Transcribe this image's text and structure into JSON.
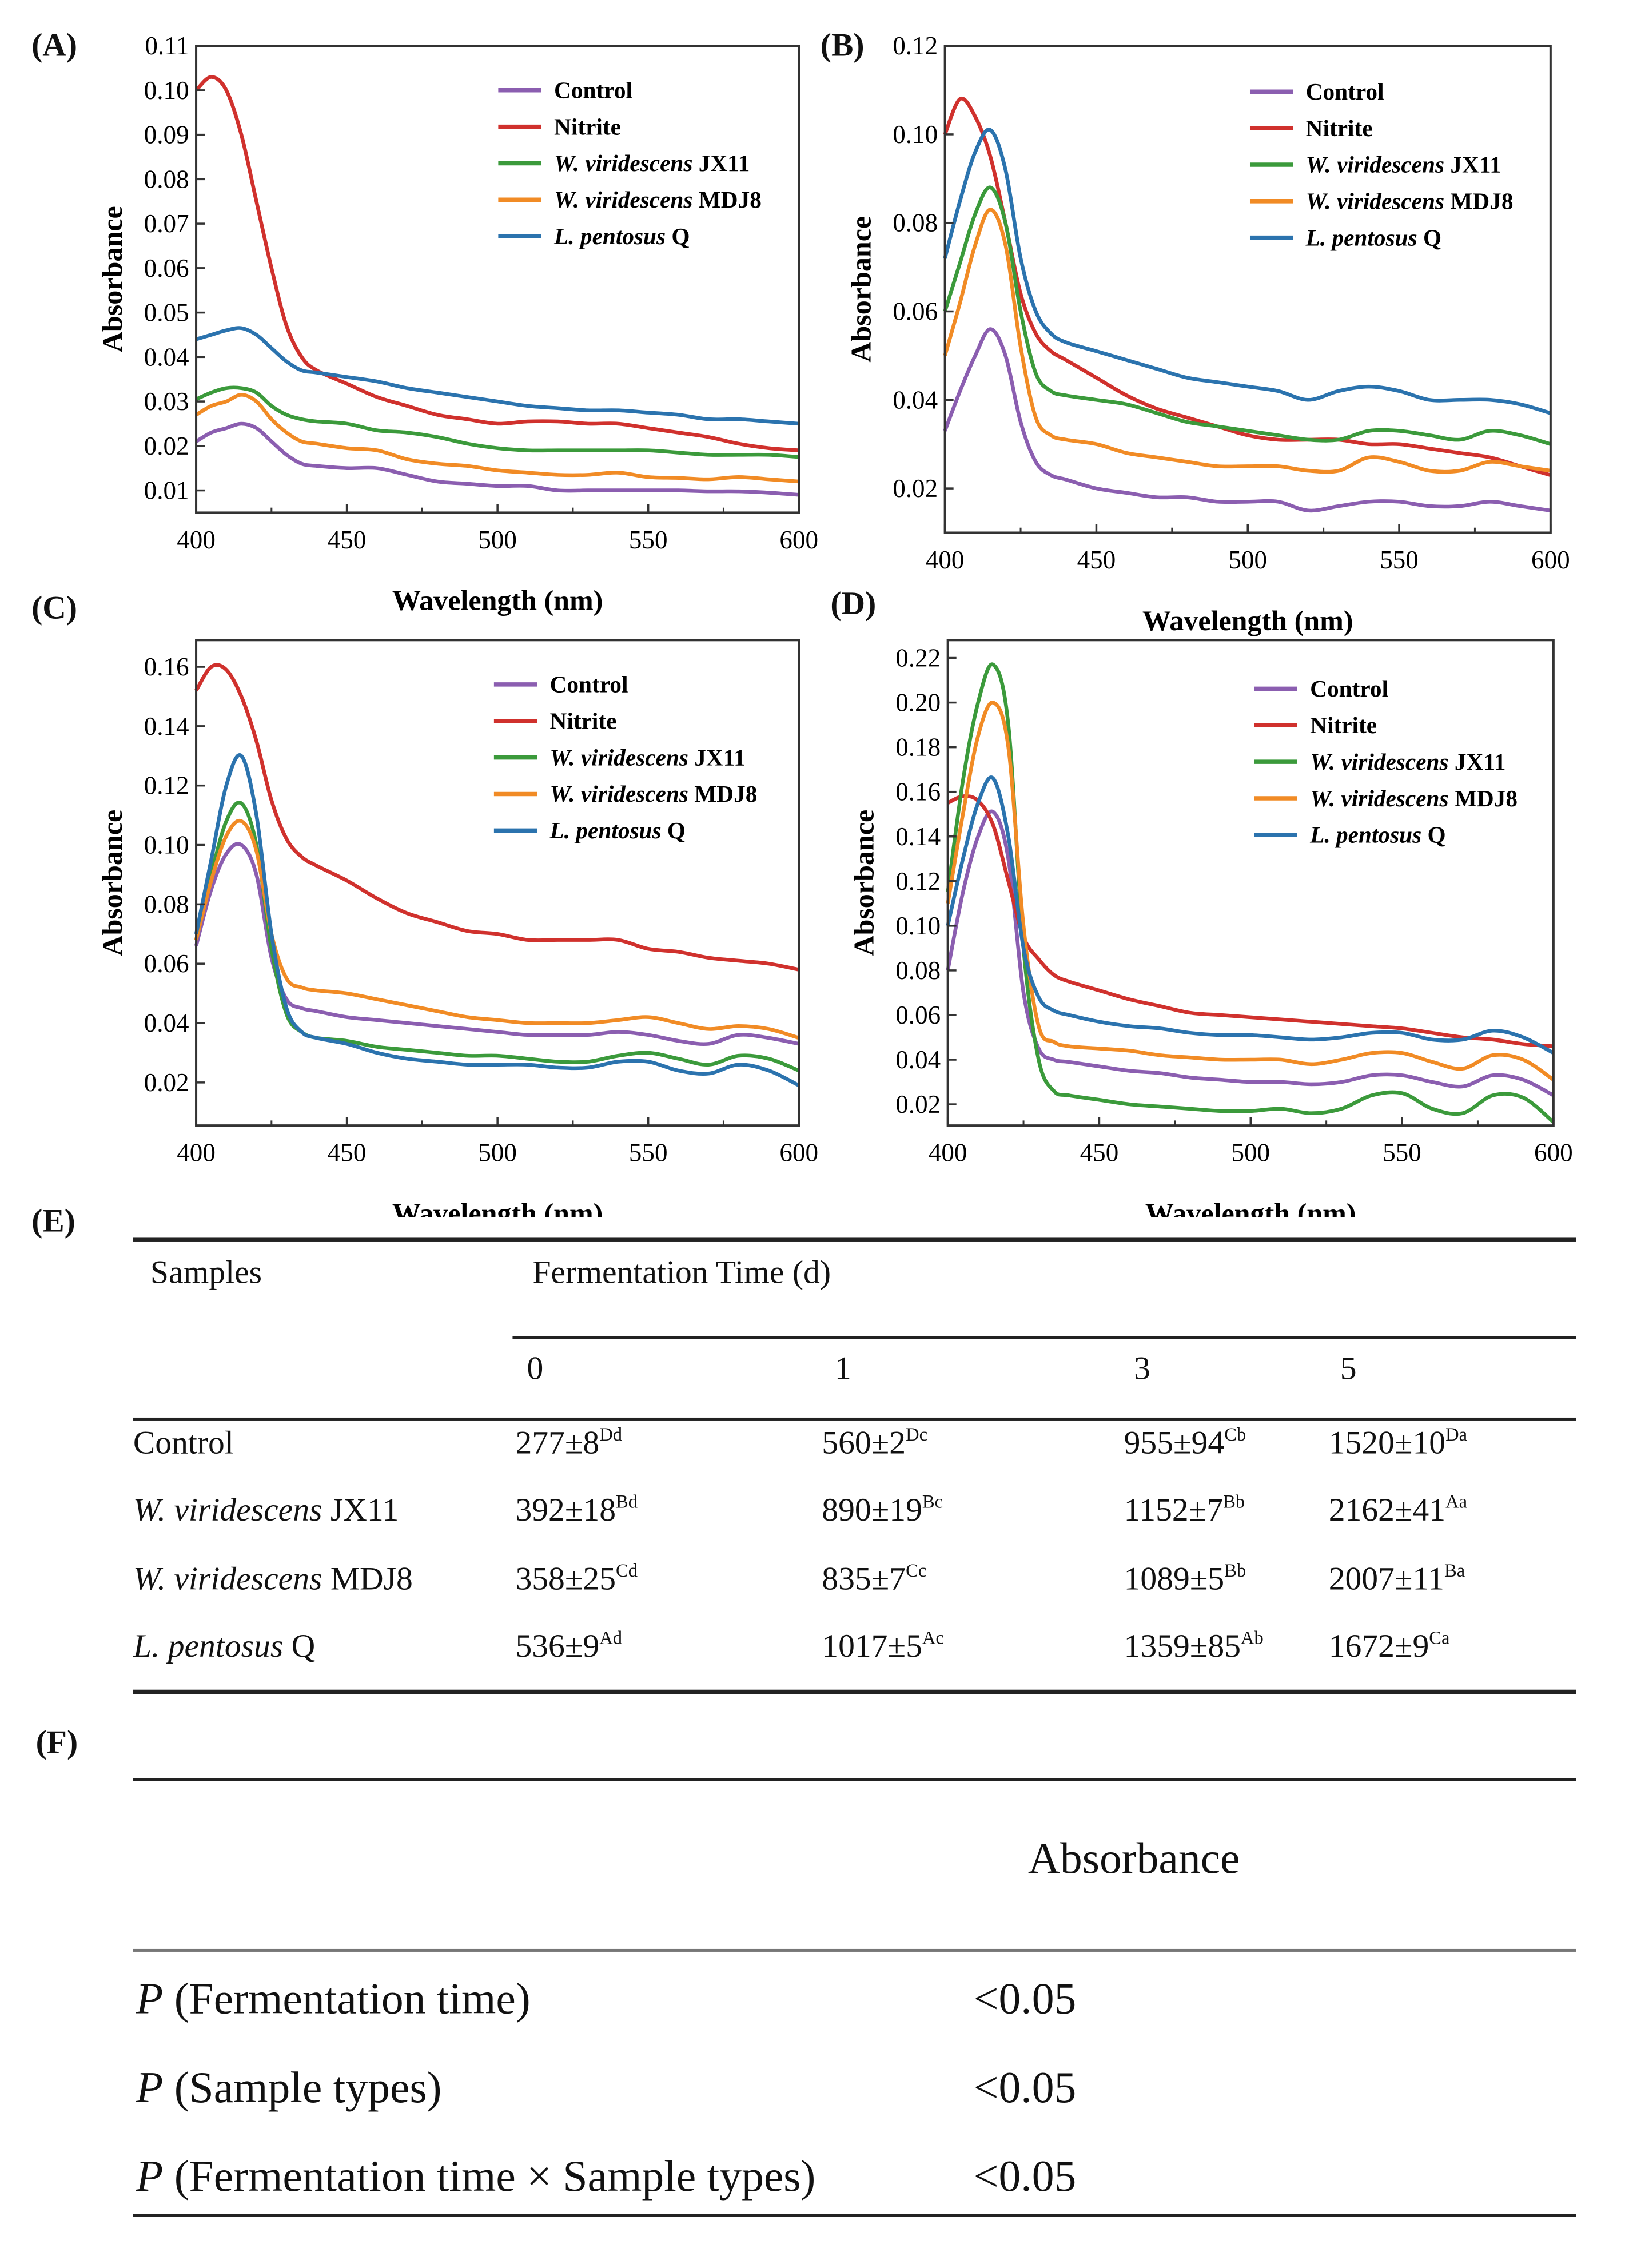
{
  "panels": {
    "A": "(A)",
    "B": "(B)",
    "C": "(C)",
    "D": "(D)",
    "E": "(E)",
    "F": "(F)"
  },
  "colors": {
    "Control": "#8b5eb0",
    "Nitrite": "#d0312d",
    "JX11": "#3b9a3b",
    "MDJ8": "#f18b25",
    "Q": "#2b73ae"
  },
  "chart_data": [
    {
      "type": "line",
      "panel": "A",
      "xlabel": "Wavelength (nm)",
      "ylabel": "Absorbance",
      "xlim": [
        400,
        600
      ],
      "ylim": [
        0.005,
        0.11
      ],
      "xtick_labels": [
        "400",
        "450",
        "500",
        "550",
        "600"
      ],
      "ytick_labels": [
        "0.01",
        "0.02",
        "0.03",
        "0.04",
        "0.05",
        "0.06",
        "0.07",
        "0.08",
        "0.09",
        "0.10",
        "0.11"
      ],
      "legend": "top-right",
      "x": [
        400,
        405,
        410,
        415,
        420,
        425,
        430,
        435,
        440,
        450,
        460,
        470,
        480,
        490,
        500,
        510,
        520,
        530,
        540,
        550,
        560,
        570,
        580,
        590,
        600
      ],
      "series": [
        {
          "key": "Control",
          "name_italic": "",
          "name_plain": "Control",
          "values": [
            0.021,
            0.023,
            0.024,
            0.025,
            0.024,
            0.021,
            0.018,
            0.016,
            0.0155,
            0.015,
            0.015,
            0.0135,
            0.012,
            0.0115,
            0.011,
            0.011,
            0.01,
            0.01,
            0.01,
            0.01,
            0.01,
            0.0098,
            0.0098,
            0.0095,
            0.009
          ]
        },
        {
          "key": "Nitrite",
          "name_italic": "",
          "name_plain": "Nitrite",
          "values": [
            0.1,
            0.103,
            0.1,
            0.09,
            0.075,
            0.06,
            0.047,
            0.04,
            0.037,
            0.034,
            0.031,
            0.029,
            0.027,
            0.026,
            0.025,
            0.0255,
            0.0255,
            0.025,
            0.025,
            0.024,
            0.023,
            0.022,
            0.0205,
            0.0195,
            0.019
          ]
        },
        {
          "key": "JX11",
          "name_italic": "W. viridescens",
          "name_plain": " JX11",
          "values": [
            0.0305,
            0.032,
            0.033,
            0.033,
            0.032,
            0.029,
            0.027,
            0.026,
            0.0255,
            0.025,
            0.0235,
            0.023,
            0.022,
            0.0205,
            0.0195,
            0.019,
            0.019,
            0.019,
            0.019,
            0.019,
            0.0185,
            0.018,
            0.018,
            0.018,
            0.0175
          ]
        },
        {
          "key": "MDJ8",
          "name_italic": "W. viridescens",
          "name_plain": " MDJ8",
          "values": [
            0.027,
            0.029,
            0.03,
            0.0315,
            0.03,
            0.026,
            0.023,
            0.021,
            0.0205,
            0.0195,
            0.019,
            0.017,
            0.016,
            0.0155,
            0.0145,
            0.014,
            0.0135,
            0.0135,
            0.014,
            0.013,
            0.0128,
            0.0125,
            0.013,
            0.0125,
            0.012
          ]
        },
        {
          "key": "Q",
          "name_italic": "L. pentosus",
          "name_plain": " Q",
          "values": [
            0.044,
            0.045,
            0.046,
            0.0465,
            0.045,
            0.042,
            0.039,
            0.037,
            0.0365,
            0.0355,
            0.0345,
            0.033,
            0.032,
            0.031,
            0.03,
            0.029,
            0.0285,
            0.028,
            0.028,
            0.0275,
            0.027,
            0.026,
            0.026,
            0.0255,
            0.025
          ]
        }
      ]
    },
    {
      "type": "line",
      "panel": "B",
      "xlabel": "Wavelength (nm)",
      "ylabel": "Absorbance",
      "xlim": [
        400,
        600
      ],
      "ylim": [
        0.01,
        0.12
      ],
      "xtick_labels": [
        "400",
        "450",
        "500",
        "550",
        "600"
      ],
      "ytick_labels": [
        "0.02",
        "0.04",
        "0.06",
        "0.08",
        "0.10",
        "0.12"
      ],
      "legend": "top-right",
      "x": [
        400,
        405,
        410,
        415,
        420,
        425,
        430,
        435,
        440,
        450,
        460,
        470,
        480,
        490,
        500,
        510,
        520,
        530,
        540,
        550,
        560,
        570,
        580,
        590,
        600
      ],
      "series": [
        {
          "key": "Control",
          "name_italic": "",
          "name_plain": "Control",
          "values": [
            0.033,
            0.042,
            0.05,
            0.056,
            0.05,
            0.035,
            0.026,
            0.023,
            0.022,
            0.02,
            0.019,
            0.018,
            0.018,
            0.017,
            0.017,
            0.017,
            0.015,
            0.016,
            0.017,
            0.017,
            0.016,
            0.016,
            0.017,
            0.016,
            0.015
          ]
        },
        {
          "key": "Nitrite",
          "name_italic": "",
          "name_plain": "Nitrite",
          "values": [
            0.1,
            0.108,
            0.104,
            0.095,
            0.08,
            0.064,
            0.055,
            0.051,
            0.049,
            0.045,
            0.041,
            0.038,
            0.036,
            0.034,
            0.032,
            0.031,
            0.031,
            0.031,
            0.03,
            0.03,
            0.029,
            0.028,
            0.027,
            0.025,
            0.023
          ]
        },
        {
          "key": "JX11",
          "name_italic": "W. viridescens",
          "name_plain": " JX11",
          "values": [
            0.06,
            0.071,
            0.082,
            0.088,
            0.08,
            0.06,
            0.046,
            0.042,
            0.041,
            0.04,
            0.039,
            0.037,
            0.035,
            0.034,
            0.033,
            0.032,
            0.031,
            0.031,
            0.033,
            0.033,
            0.032,
            0.031,
            0.033,
            0.032,
            0.03
          ]
        },
        {
          "key": "MDJ8",
          "name_italic": "W. viridescens",
          "name_plain": " MDJ8",
          "values": [
            0.05,
            0.062,
            0.075,
            0.083,
            0.075,
            0.052,
            0.036,
            0.032,
            0.031,
            0.03,
            0.028,
            0.027,
            0.026,
            0.025,
            0.025,
            0.025,
            0.024,
            0.024,
            0.027,
            0.026,
            0.024,
            0.024,
            0.026,
            0.025,
            0.024
          ]
        },
        {
          "key": "Q",
          "name_italic": "L. pentosus",
          "name_plain": " Q",
          "values": [
            0.072,
            0.085,
            0.096,
            0.101,
            0.092,
            0.072,
            0.06,
            0.055,
            0.053,
            0.051,
            0.049,
            0.047,
            0.045,
            0.044,
            0.043,
            0.042,
            0.04,
            0.042,
            0.043,
            0.042,
            0.04,
            0.04,
            0.04,
            0.039,
            0.037
          ]
        }
      ]
    },
    {
      "type": "line",
      "panel": "C",
      "xlabel": "Wavelength (nm)",
      "ylabel": "Absorbance",
      "xlim": [
        400,
        600
      ],
      "ylim": [
        0.0055,
        0.169
      ],
      "xtick_labels": [
        "400",
        "450",
        "500",
        "550",
        "600"
      ],
      "ytick_labels": [
        "0.02",
        "0.04",
        "0.06",
        "0.08",
        "0.10",
        "0.12",
        "0.14",
        "0.16"
      ],
      "legend": "top-right",
      "x": [
        400,
        405,
        410,
        415,
        420,
        425,
        430,
        435,
        440,
        450,
        460,
        470,
        480,
        490,
        500,
        510,
        520,
        530,
        540,
        550,
        560,
        570,
        580,
        590,
        600
      ],
      "series": [
        {
          "key": "Control",
          "name_italic": "",
          "name_plain": "Control",
          "values": [
            0.066,
            0.085,
            0.097,
            0.1,
            0.09,
            0.062,
            0.048,
            0.045,
            0.044,
            0.042,
            0.041,
            0.04,
            0.039,
            0.038,
            0.037,
            0.036,
            0.036,
            0.036,
            0.037,
            0.036,
            0.034,
            0.033,
            0.036,
            0.035,
            0.033
          ]
        },
        {
          "key": "Nitrite",
          "name_italic": "",
          "name_plain": "Nitrite",
          "values": [
            0.152,
            0.16,
            0.159,
            0.15,
            0.135,
            0.115,
            0.102,
            0.096,
            0.093,
            0.088,
            0.082,
            0.077,
            0.074,
            0.071,
            0.07,
            0.068,
            0.068,
            0.068,
            0.068,
            0.065,
            0.064,
            0.062,
            0.061,
            0.06,
            0.058
          ]
        },
        {
          "key": "JX11",
          "name_italic": "W. viridescens",
          "name_plain": " JX11",
          "values": [
            0.068,
            0.09,
            0.108,
            0.114,
            0.1,
            0.065,
            0.043,
            0.037,
            0.035,
            0.034,
            0.032,
            0.031,
            0.03,
            0.029,
            0.029,
            0.028,
            0.027,
            0.027,
            0.029,
            0.03,
            0.028,
            0.026,
            0.029,
            0.028,
            0.024
          ]
        },
        {
          "key": "MDJ8",
          "name_italic": "W. viridescens",
          "name_plain": " MDJ8",
          "values": [
            0.068,
            0.088,
            0.103,
            0.108,
            0.098,
            0.07,
            0.055,
            0.052,
            0.051,
            0.05,
            0.048,
            0.046,
            0.044,
            0.042,
            0.041,
            0.04,
            0.04,
            0.04,
            0.041,
            0.042,
            0.04,
            0.038,
            0.039,
            0.038,
            0.035
          ]
        },
        {
          "key": "Q",
          "name_italic": "L. pentosus",
          "name_plain": " Q",
          "values": [
            0.07,
            0.095,
            0.12,
            0.13,
            0.11,
            0.07,
            0.045,
            0.037,
            0.035,
            0.033,
            0.03,
            0.028,
            0.027,
            0.026,
            0.026,
            0.026,
            0.025,
            0.025,
            0.027,
            0.027,
            0.024,
            0.023,
            0.026,
            0.024,
            0.019
          ]
        }
      ]
    },
    {
      "type": "line",
      "panel": "D",
      "xlabel": "Wavelength (nm)",
      "ylabel": "Absorbance",
      "xlim": [
        400,
        600
      ],
      "ylim": [
        0.0105,
        0.228
      ],
      "xtick_labels": [
        "400",
        "450",
        "500",
        "550",
        "600"
      ],
      "ytick_labels": [
        "0.02",
        "0.04",
        "0.06",
        "0.08",
        "0.10",
        "0.12",
        "0.14",
        "0.16",
        "0.18",
        "0.20",
        "0.22"
      ],
      "legend": "top-right",
      "x": [
        400,
        405,
        410,
        415,
        420,
        425,
        430,
        435,
        440,
        450,
        460,
        470,
        480,
        490,
        500,
        510,
        520,
        530,
        540,
        550,
        560,
        570,
        580,
        590,
        600
      ],
      "series": [
        {
          "key": "Control",
          "name_italic": "",
          "name_plain": "Control",
          "values": [
            0.08,
            0.115,
            0.14,
            0.151,
            0.13,
            0.07,
            0.045,
            0.04,
            0.039,
            0.037,
            0.035,
            0.034,
            0.032,
            0.031,
            0.03,
            0.03,
            0.029,
            0.03,
            0.033,
            0.033,
            0.03,
            0.028,
            0.033,
            0.031,
            0.024
          ]
        },
        {
          "key": "Nitrite",
          "name_italic": "",
          "name_plain": "Nitrite",
          "values": [
            0.155,
            0.158,
            0.156,
            0.145,
            0.12,
            0.095,
            0.085,
            0.078,
            0.075,
            0.071,
            0.067,
            0.064,
            0.061,
            0.06,
            0.059,
            0.058,
            0.057,
            0.056,
            0.055,
            0.054,
            0.052,
            0.05,
            0.049,
            0.047,
            0.046
          ]
        },
        {
          "key": "JX11",
          "name_italic": "W. viridescens",
          "name_plain": " JX11",
          "values": [
            0.115,
            0.165,
            0.2,
            0.217,
            0.19,
            0.09,
            0.04,
            0.026,
            0.024,
            0.022,
            0.02,
            0.019,
            0.018,
            0.017,
            0.017,
            0.018,
            0.016,
            0.018,
            0.024,
            0.025,
            0.018,
            0.016,
            0.024,
            0.023,
            0.012
          ]
        },
        {
          "key": "MDJ8",
          "name_italic": "W. viridescens",
          "name_plain": " MDJ8",
          "values": [
            0.11,
            0.15,
            0.185,
            0.2,
            0.18,
            0.1,
            0.055,
            0.048,
            0.046,
            0.045,
            0.044,
            0.042,
            0.041,
            0.04,
            0.04,
            0.04,
            0.038,
            0.04,
            0.043,
            0.043,
            0.039,
            0.036,
            0.042,
            0.04,
            0.031
          ]
        },
        {
          "key": "Q",
          "name_italic": "L. pentosus",
          "name_plain": " Q",
          "values": [
            0.1,
            0.13,
            0.155,
            0.166,
            0.14,
            0.09,
            0.068,
            0.062,
            0.06,
            0.057,
            0.055,
            0.054,
            0.052,
            0.051,
            0.051,
            0.05,
            0.049,
            0.05,
            0.052,
            0.052,
            0.049,
            0.049,
            0.053,
            0.05,
            0.043
          ]
        }
      ]
    }
  ],
  "table_e": {
    "samples_header": "Samples",
    "group_header": "Fermentation Time (d)",
    "days": [
      "0",
      "1",
      "3",
      "5"
    ],
    "rows": [
      {
        "italic": "",
        "plain": "Control",
        "cells": [
          {
            "v": "277±8",
            "s": "Dd"
          },
          {
            "v": "560±2",
            "s": "Dc"
          },
          {
            "v": "955±94",
            "s": "Cb"
          },
          {
            "v": "1520±10",
            "s": "Da"
          }
        ]
      },
      {
        "italic": "W. viridescens",
        "plain": " JX11",
        "cells": [
          {
            "v": "392±18",
            "s": "Bd"
          },
          {
            "v": "890±19",
            "s": "Bc"
          },
          {
            "v": "1152±7",
            "s": "Bb"
          },
          {
            "v": "2162±41",
            "s": "Aa"
          }
        ]
      },
      {
        "italic": "W. viridescens",
        "plain": " MDJ8",
        "cells": [
          {
            "v": "358±25",
            "s": "Cd"
          },
          {
            "v": "835±7",
            "s": "Cc"
          },
          {
            "v": "1089±5",
            "s": "Bb"
          },
          {
            "v": "2007±11",
            "s": "Ba"
          }
        ]
      },
      {
        "italic": "L. pentosus",
        "plain": " Q",
        "cells": [
          {
            "v": "536±9",
            "s": "Ad"
          },
          {
            "v": "1017±5",
            "s": "Ac"
          },
          {
            "v": "1359±85",
            "s": "Ab"
          },
          {
            "v": "1672±9",
            "s": "Ca"
          }
        ]
      }
    ]
  },
  "table_f": {
    "header": "Absorbance",
    "rows": [
      {
        "p": "P",
        "label": " (Fermentation time)",
        "value": "<0.05"
      },
      {
        "p": "P",
        "label": " (Sample types)",
        "value": "<0.05"
      },
      {
        "p": "P",
        "label": " (Fermentation time × Sample types)",
        "value": "<0.05"
      }
    ]
  }
}
